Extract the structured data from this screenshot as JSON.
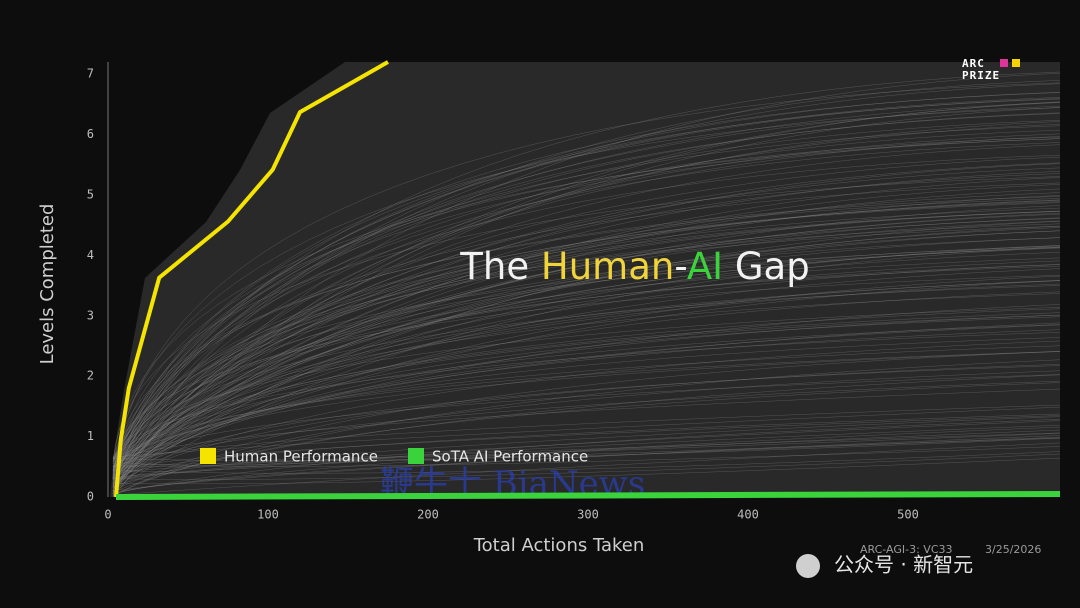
{
  "chart_data": {
    "type": "line",
    "title": [
      "The ",
      "Human",
      "-",
      "AI",
      " Gap"
    ],
    "title_colors": [
      "#f2f2f2",
      "#f0d43a",
      "#f2f2f2",
      "#3bd33b",
      "#f2f2f2"
    ],
    "x_label": "Total Actions Taken",
    "y_label": "Levels Completed",
    "xlim": [
      0,
      595
    ],
    "ylim": [
      0,
      7.2
    ],
    "xticks": [
      0,
      100,
      200,
      300,
      400,
      500
    ],
    "yticks": [
      0,
      1,
      2,
      3,
      4,
      5,
      6,
      7
    ],
    "grid": false,
    "series": [
      {
        "name": "Human Performance",
        "color": "#f5e400",
        "x": [
          5,
          8,
          13,
          32,
          75,
          103,
          120,
          175
        ],
        "values": [
          0,
          0.95,
          1.8,
          3.63,
          4.56,
          5.42,
          6.37,
          7.2
        ]
      },
      {
        "name": "SoTA AI Performance",
        "color": "#3bd33b",
        "x": [
          5,
          595
        ],
        "values": [
          0,
          0.05
        ]
      }
    ]
  },
  "logo": {
    "line1": "ARC",
    "line2": "PRIZE"
  },
  "footer": {
    "game": "ARC-AGI-3: VC33",
    "date": "3/25/2026"
  },
  "watermarks": [
    "鞭牛士 BiaNews",
    "公众号 · 新智元"
  ]
}
